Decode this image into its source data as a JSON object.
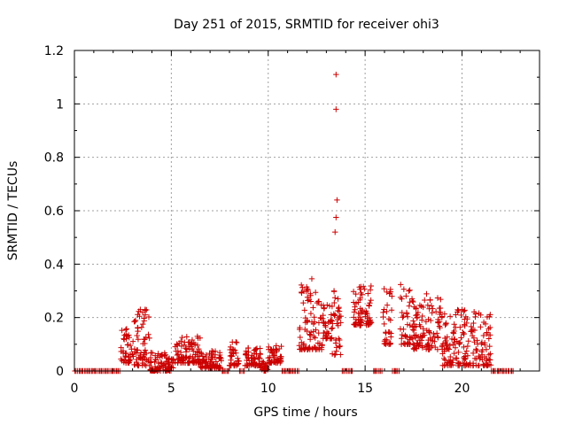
{
  "chart_data": {
    "type": "scatter",
    "title": "Day 251 of 2015, SRMTID for receiver ohi3",
    "xlabel": "GPS time / hours",
    "ylabel": "SRMTID / TECUs",
    "xlim": [
      0,
      24
    ],
    "ylim": [
      0,
      1.2
    ],
    "x_ticks": [
      0,
      5,
      10,
      15,
      20
    ],
    "x_tick_labels": [
      "0",
      "5",
      "10",
      "15",
      "20"
    ],
    "y_ticks": [
      0,
      0.2,
      0.4,
      0.6,
      0.8,
      1.0,
      1.2
    ],
    "y_tick_labels": [
      "0",
      "0.2",
      "0.4",
      "0.6",
      "0.8",
      "1",
      "1.2"
    ],
    "grid": true,
    "marker": "+",
    "marker_color": "#cc0000",
    "series": [
      {
        "name": "SRMTID",
        "clusters": [
          {
            "x_start": 0.0,
            "x_end": 2.4,
            "y_min": 0.0,
            "y_max": 0.0
          },
          {
            "x_start": 2.4,
            "x_end": 3.0,
            "y_min": 0.03,
            "y_max": 0.17
          },
          {
            "x_start": 3.0,
            "x_end": 3.9,
            "y_min": 0.02,
            "y_max": 0.23
          },
          {
            "x_start": 3.9,
            "x_end": 5.1,
            "y_min": 0.0,
            "y_max": 0.07
          },
          {
            "x_start": 5.1,
            "x_end": 6.5,
            "y_min": 0.03,
            "y_max": 0.13
          },
          {
            "x_start": 6.5,
            "x_end": 7.6,
            "y_min": 0.01,
            "y_max": 0.08
          },
          {
            "x_start": 7.6,
            "x_end": 8.0,
            "y_min": 0.0,
            "y_max": 0.0
          },
          {
            "x_start": 8.0,
            "x_end": 8.5,
            "y_min": 0.02,
            "y_max": 0.13
          },
          {
            "x_start": 8.5,
            "x_end": 8.8,
            "y_min": 0.0,
            "y_max": 0.0
          },
          {
            "x_start": 8.8,
            "x_end": 9.6,
            "y_min": 0.02,
            "y_max": 0.09
          },
          {
            "x_start": 9.6,
            "x_end": 10.0,
            "y_min": 0.0,
            "y_max": 0.04
          },
          {
            "x_start": 10.0,
            "x_end": 10.7,
            "y_min": 0.03,
            "y_max": 0.1
          },
          {
            "x_start": 10.7,
            "x_end": 11.6,
            "y_min": 0.0,
            "y_max": 0.0
          },
          {
            "x_start": 11.6,
            "x_end": 12.0,
            "y_min": 0.08,
            "y_max": 0.34
          },
          {
            "x_start": 12.0,
            "x_end": 12.8,
            "y_min": 0.08,
            "y_max": 0.34
          },
          {
            "x_start": 12.8,
            "x_end": 13.3,
            "y_min": 0.12,
            "y_max": 0.25
          },
          {
            "x_start": 13.3,
            "x_end": 13.8,
            "y_min": 0.06,
            "y_max": 0.3
          },
          {
            "x_start": 13.8,
            "x_end": 14.4,
            "y_min": 0.0,
            "y_max": 0.0
          },
          {
            "x_start": 14.4,
            "x_end": 15.4,
            "y_min": 0.17,
            "y_max": 0.32
          },
          {
            "x_start": 15.4,
            "x_end": 15.9,
            "y_min": 0.0,
            "y_max": 0.0
          },
          {
            "x_start": 15.9,
            "x_end": 16.4,
            "y_min": 0.1,
            "y_max": 0.31
          },
          {
            "x_start": 16.4,
            "x_end": 16.8,
            "y_min": 0.0,
            "y_max": 0.0
          },
          {
            "x_start": 16.8,
            "x_end": 17.5,
            "y_min": 0.1,
            "y_max": 0.33
          },
          {
            "x_start": 17.5,
            "x_end": 19.0,
            "y_min": 0.08,
            "y_max": 0.29
          },
          {
            "x_start": 19.0,
            "x_end": 20.5,
            "y_min": 0.02,
            "y_max": 0.23
          },
          {
            "x_start": 20.5,
            "x_end": 21.5,
            "y_min": 0.02,
            "y_max": 0.23
          },
          {
            "x_start": 21.5,
            "x_end": 22.7,
            "y_min": 0.0,
            "y_max": 0.0
          }
        ],
        "outliers": [
          {
            "x": 13.5,
            "y": 1.11
          },
          {
            "x": 13.5,
            "y": 0.98
          },
          {
            "x": 13.55,
            "y": 0.64
          },
          {
            "x": 13.5,
            "y": 0.575
          },
          {
            "x": 13.45,
            "y": 0.52
          },
          {
            "x": 13.6,
            "y": 0.27
          },
          {
            "x": 12.25,
            "y": 0.345
          },
          {
            "x": 3.4,
            "y": 0.23
          },
          {
            "x": 3.65,
            "y": 0.23
          }
        ]
      }
    ]
  }
}
